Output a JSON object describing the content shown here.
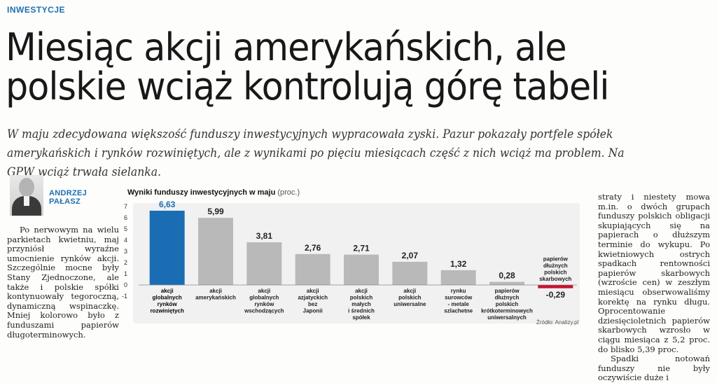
{
  "section": "INWESTYCJE",
  "headline_lines": [
    "Miesiąc akcji amerykańskich, ale",
    "polskie wciąż kontrolują górę tabeli"
  ],
  "lead": "W maju zdecydowana większość funduszy inwestycyjnych wypracowała zyski. Pazur pokazały portfele spółek amerykańskich i rynków rozwiniętych, ale z wynikami po pięciu miesiącach część z nich wciąż ma problem. Na GPW wciąż trwała sielanka.",
  "author": {
    "first": "ANDRZEJ",
    "last": "PAŁASZ"
  },
  "left_column": "Po nerwowym na wielu parkietach kwietniu, maj przyniósł wyraźne umocnienie rynków akcji. Szczególnie mocne były Stany Zjednoczone, ale także i polskie spółki kontynuowały tegoroczną, dynamiczną wspinaczkę. Mniej kolorowo było z funduszami papierów długoterminowych.",
  "right_column": {
    "para1": "straty i niestety mowa m.in. o dwóch grupach funduszy polskich obligacji skupiających się na papierach o dłuższym terminie do wykupu. Po kwietniowych ostrych spadkach rentowności papierów skarbowych (wzroście cen) w zeszłym miesiącu obserwowaliśmy korektę na rynku długu. Oprocentowanie dziesięcioletnich papierów skarbowych wzrosło w ciągu miesiąca z 5,2 proc. do blisko 5,39 proc.",
    "para2": "Spadki notowań funduszy nie były oczywiście duże i"
  },
  "source": "Źródło: Analizy.pl",
  "colors": {
    "accent": "#1d6fb0",
    "bar_highlight": "#1b6db3",
    "bar": "#b9b9b9",
    "negative": "#c8102e",
    "chart_bg": "#f1f1f1"
  },
  "chart_data": {
    "type": "bar",
    "title": "Wyniki funduszy inwestycyjnych w maju",
    "unit": "(proc.)",
    "categories": [
      "akcji\nglobalnych\nrynków\nrozwiniętych",
      "akcji\namerykańskich",
      "akcji\nglobalnych\nrynków\nwschodzących",
      "akcji\nazjatyckich\nbez\nJaponii",
      "akcji\npolskich\nmałych\ni średnich\nspółek",
      "akcji\npolskich\nuniwersalne",
      "rynku\nsurowców\n- metale\nszlachetne",
      "papierów\ndłużnych\npolskich\nkrótkoterminowych\nuniwersalnych",
      "papierów\ndłużnych\npolskich\nskarbowych"
    ],
    "values": [
      6.63,
      5.99,
      3.81,
      2.76,
      2.71,
      2.07,
      1.32,
      0.28,
      -0.29
    ],
    "value_labels": [
      "6,63",
      "5,99",
      "3,81",
      "2,76",
      "2,71",
      "2,07",
      "1,32",
      "0,28",
      "-0,29"
    ],
    "y_ticks": [
      "0",
      "1",
      "2",
      "3",
      "4",
      "5",
      "6",
      "7",
      "-1"
    ],
    "ylim": [
      -1,
      7
    ],
    "highlight_index": 0
  }
}
